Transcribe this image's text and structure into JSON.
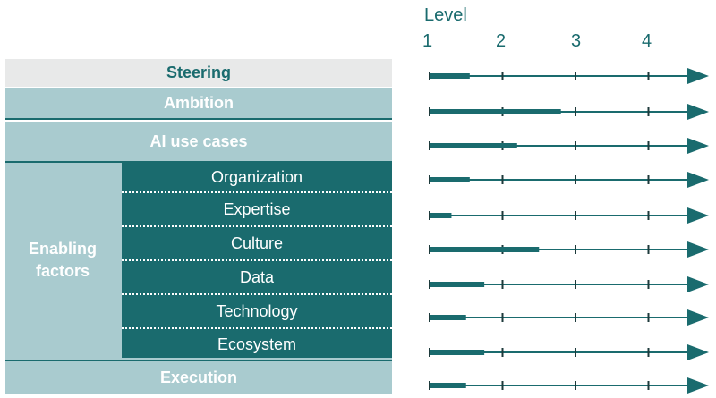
{
  "levels": {
    "title": "Level",
    "ticks": [
      "1",
      "2",
      "3",
      "4"
    ]
  },
  "rows": {
    "steering": "Steering",
    "ambition": "Ambition",
    "ai_use_cases": "AI use cases",
    "enabling_factors": [
      "Enabling",
      "factors"
    ],
    "sub_factors": [
      "Organization",
      "Expertise",
      "Culture",
      "Data",
      "Technology",
      "Ecosystem"
    ],
    "execution": "Execution"
  },
  "colors": {
    "dark_teal": "#1a6b6e",
    "light_teal": "#a9cbcf",
    "light_grey": "#e8e9e9"
  },
  "chart_data": {
    "type": "bar",
    "categories": [
      "Steering",
      "Ambition",
      "AI use cases",
      "Organization",
      "Expertise",
      "Culture",
      "Data",
      "Technology",
      "Ecosystem",
      "Execution"
    ],
    "values": [
      1.55,
      2.8,
      2.2,
      1.55,
      1.3,
      2.5,
      1.75,
      1.5,
      1.75,
      1.5
    ],
    "xlabel": "Level",
    "xlim": [
      1,
      4.7
    ],
    "xticks": [
      1,
      2,
      3,
      4
    ]
  }
}
